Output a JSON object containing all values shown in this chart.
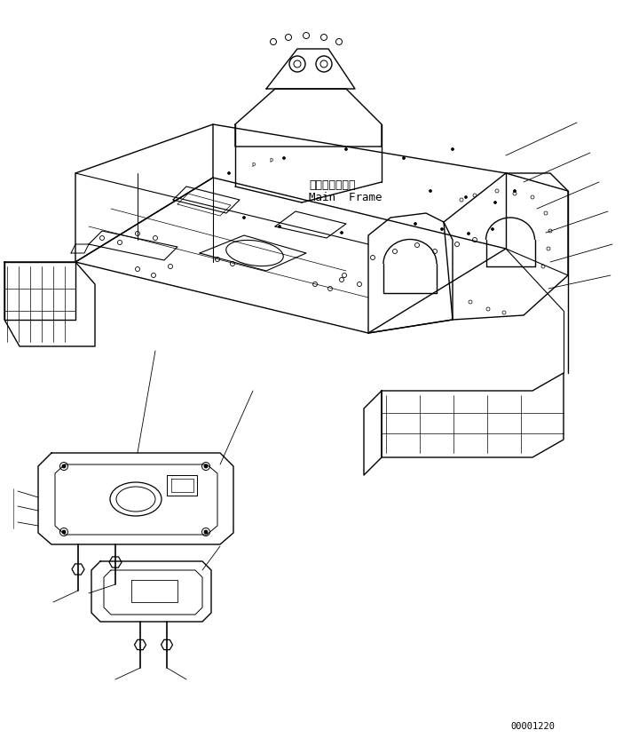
{
  "title": "",
  "part_number": "00001220",
  "label_japanese": "メインフレーム",
  "label_english": "Main  Frame",
  "bg_color": "#ffffff",
  "line_color": "#000000",
  "text_color": "#000000",
  "font_size_label": 9,
  "font_size_partno": 8,
  "figsize": [
    7.02,
    8.31
  ],
  "dpi": 100
}
